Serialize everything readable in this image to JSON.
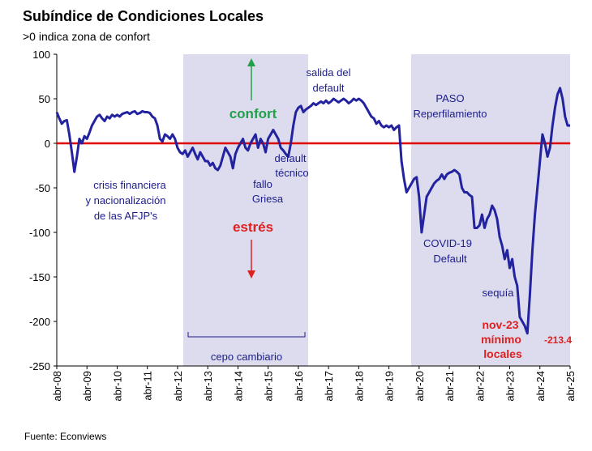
{
  "chart_data": {
    "type": "line",
    "title": "Subíndice de Condiciones Locales",
    "subtitle": ">0 indica zona de confort",
    "source": "Fuente: Econviews",
    "categories": [
      "abr-08",
      null,
      null,
      null,
      null,
      null,
      null,
      null,
      null,
      null,
      null,
      null,
      "abr-09",
      null,
      null,
      null,
      null,
      null,
      null,
      null,
      null,
      null,
      null,
      null,
      "abr-10",
      null,
      null,
      null,
      null,
      null,
      null,
      null,
      null,
      null,
      null,
      null,
      "abr-11",
      null,
      null,
      null,
      null,
      null,
      null,
      null,
      null,
      null,
      null,
      null,
      "abr-12",
      null,
      null,
      null,
      null,
      null,
      null,
      null,
      null,
      null,
      null,
      null,
      "abr-13",
      null,
      null,
      null,
      null,
      null,
      null,
      null,
      null,
      null,
      null,
      null,
      "abr-14",
      null,
      null,
      null,
      null,
      null,
      null,
      null,
      null,
      null,
      null,
      null,
      "abr-15",
      null,
      null,
      null,
      null,
      null,
      null,
      null,
      null,
      null,
      null,
      null,
      "abr-16",
      null,
      null,
      null,
      null,
      null,
      null,
      null,
      null,
      null,
      null,
      null,
      "abr-17",
      null,
      null,
      null,
      null,
      null,
      null,
      null,
      null,
      null,
      null,
      null,
      "abr-18",
      null,
      null,
      null,
      null,
      null,
      null,
      null,
      null,
      null,
      null,
      null,
      "abr-19",
      null,
      null,
      null,
      null,
      null,
      null,
      null,
      null,
      null,
      null,
      null,
      "abr-20",
      null,
      null,
      null,
      null,
      null,
      null,
      null,
      null,
      null,
      null,
      null,
      "abr-21",
      null,
      null,
      null,
      null,
      null,
      null,
      null,
      null,
      null,
      null,
      null,
      "abr-22",
      null,
      null,
      null,
      null,
      null,
      null,
      null,
      null,
      null,
      null,
      null,
      "abr-23",
      null,
      null,
      null,
      null,
      null,
      null,
      null,
      null,
      null,
      null,
      null,
      "abr-24",
      null,
      null,
      null,
      null,
      null,
      null,
      null,
      null,
      null,
      null,
      null,
      "abr-25"
    ],
    "series": [
      {
        "name": "Subíndice de Condiciones Locales",
        "color": "#2323a0",
        "values": [
          35,
          28,
          22,
          25,
          26,
          10,
          -10,
          -32,
          -15,
          5,
          0,
          8,
          5,
          12,
          20,
          25,
          30,
          32,
          28,
          25,
          30,
          28,
          32,
          30,
          32,
          30,
          33,
          34,
          35,
          33,
          35,
          36,
          33,
          34,
          36,
          35,
          35,
          34,
          30,
          28,
          20,
          5,
          2,
          10,
          8,
          5,
          10,
          5,
          -5,
          -10,
          -12,
          -8,
          -15,
          -10,
          -5,
          -12,
          -18,
          -10,
          -15,
          -20,
          -20,
          -25,
          -22,
          -28,
          -30,
          -25,
          -15,
          -5,
          -10,
          -15,
          -28,
          -12,
          -5,
          0,
          5,
          -5,
          -8,
          0,
          5,
          10,
          -5,
          5,
          0,
          -10,
          5,
          10,
          15,
          10,
          5,
          -5,
          -8,
          -12,
          -15,
          0,
          20,
          35,
          40,
          42,
          35,
          38,
          40,
          42,
          45,
          43,
          45,
          47,
          45,
          48,
          45,
          47,
          50,
          48,
          46,
          48,
          50,
          48,
          45,
          47,
          50,
          48,
          50,
          48,
          45,
          40,
          35,
          30,
          28,
          22,
          25,
          20,
          18,
          20,
          18,
          20,
          15,
          18,
          20,
          -20,
          -40,
          -55,
          -50,
          -45,
          -40,
          -38,
          -60,
          -100,
          -80,
          -60,
          -55,
          -50,
          -45,
          -42,
          -40,
          -35,
          -40,
          -35,
          -33,
          -32,
          -30,
          -32,
          -35,
          -50,
          -55,
          -55,
          -58,
          -60,
          -95,
          -95,
          -92,
          -80,
          -95,
          -85,
          -80,
          -70,
          -75,
          -85,
          -105,
          -115,
          -130,
          -120,
          -140,
          -130,
          -150,
          -160,
          -195,
          -200,
          -205,
          -213.4,
          -170,
          -120,
          -80,
          -50,
          -20,
          10,
          0,
          -15,
          -5,
          20,
          40,
          55,
          62,
          50,
          30,
          20,
          20
        ]
      }
    ],
    "ylim": [
      -250,
      100
    ],
    "yticks": [
      100,
      50,
      0,
      -50,
      -100,
      -150,
      -200,
      -250
    ],
    "annotations": [
      "salida del",
      "default",
      "confort",
      "PASO",
      "Reperfilamiento",
      "default",
      "técnico",
      "fallo",
      "Griesa",
      "crisis financiera",
      "y nacionalización",
      "de las  AFJP's",
      "estrés",
      "COVID-19",
      "Default",
      "sequía",
      "nov-23",
      "mínimo",
      "locales",
      "-213.4",
      "cepo cambiario"
    ]
  }
}
